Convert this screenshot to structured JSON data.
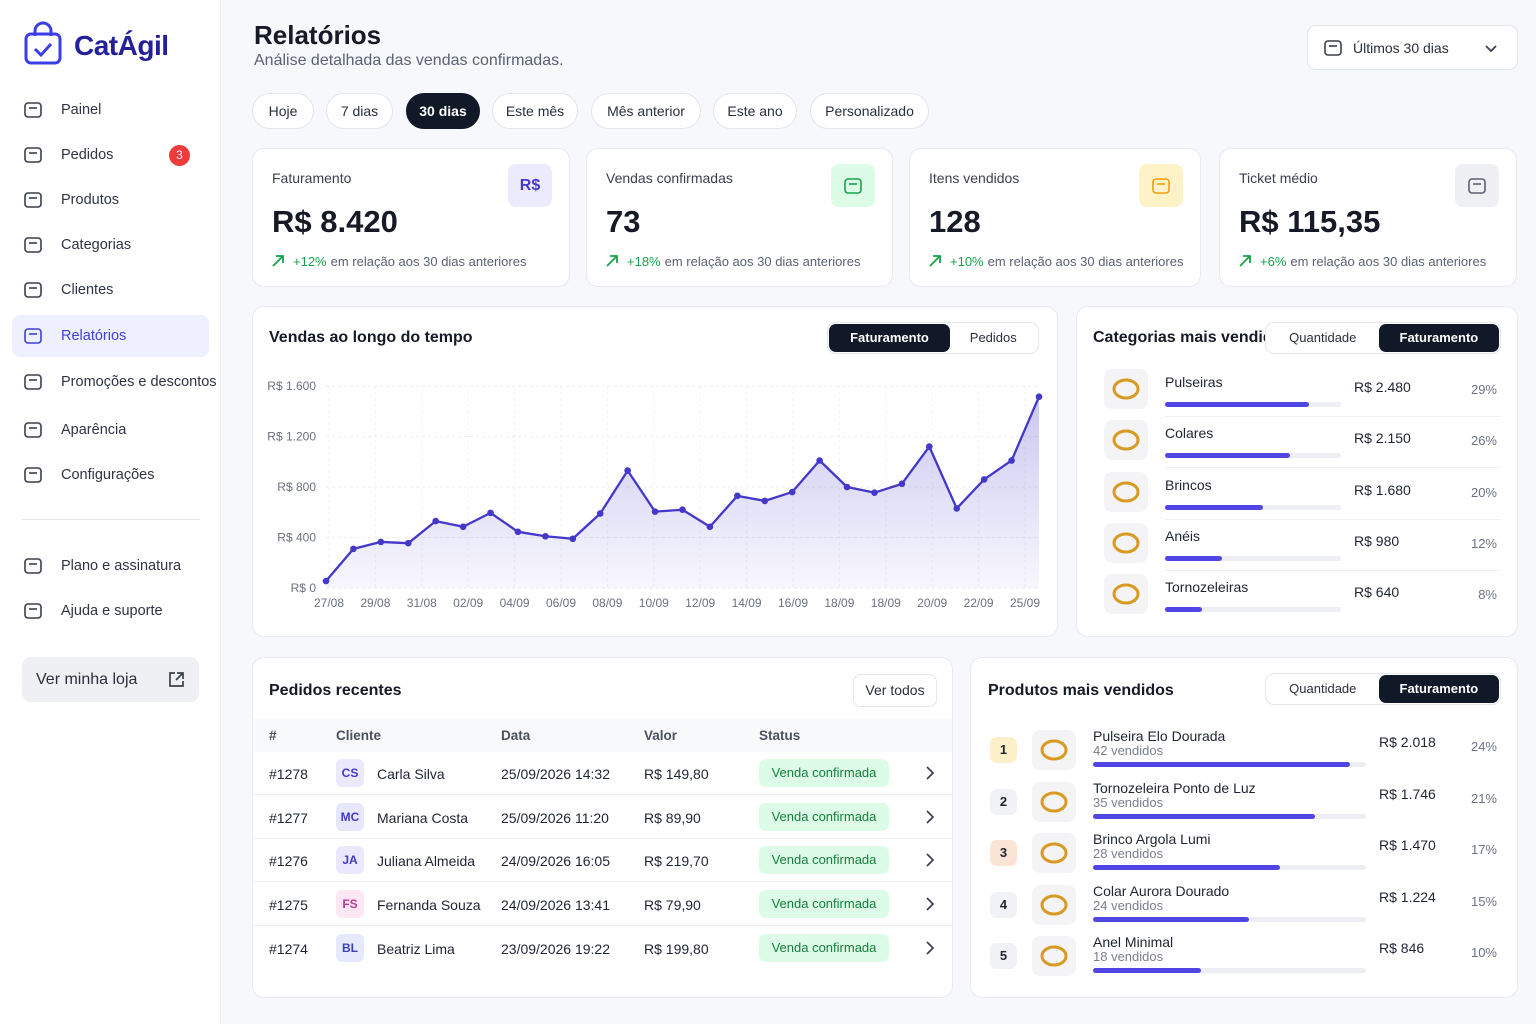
{
  "brand": "CatÁgil",
  "nav": [
    {
      "label": "Painel"
    },
    {
      "label": "Pedidos",
      "badge": "3"
    },
    {
      "label": "Produtos"
    },
    {
      "label": "Categorias"
    },
    {
      "label": "Clientes"
    },
    {
      "label": "Relatórios",
      "active": true
    },
    {
      "label": "Promoções e descontos"
    },
    {
      "label": "Aparência"
    },
    {
      "label": "Configurações"
    }
  ],
  "nav_secondary": [
    {
      "label": "Plano e assinatura"
    },
    {
      "label": "Ajuda e suporte"
    }
  ],
  "store_button": "Ver minha loja",
  "header": {
    "title": "Relatórios",
    "subtitle": "Análise detalhada das vendas confirmadas.",
    "date_select": "Últimos 30 dias"
  },
  "filters": [
    {
      "label": "Hoje"
    },
    {
      "label": "7 dias"
    },
    {
      "label": "30 dias",
      "active": true
    },
    {
      "label": "Este mês"
    },
    {
      "label": "Mês anterior"
    },
    {
      "label": "Este ano"
    },
    {
      "label": "Personalizado"
    }
  ],
  "kpis": [
    {
      "label": "Faturamento",
      "icon": "R$",
      "value": "R$ 8.420",
      "change": "+12%",
      "note": "em relação aos 30 dias anteriores"
    },
    {
      "label": "Vendas confirmadas",
      "value": "73",
      "change": "+18%",
      "note": "em relação aos 30 dias anteriores"
    },
    {
      "label": "Itens vendidos",
      "value": "128",
      "change": "+10%",
      "note": "em relação aos 30 dias anteriores"
    },
    {
      "label": "Ticket médio",
      "value": "R$ 115,35",
      "change": "+6%",
      "note": "em relação aos 30 dias anteriores"
    }
  ],
  "sales_chart": {
    "type": "line",
    "title": "Vendas ao longo do tempo",
    "toggle": [
      {
        "label": "Faturamento",
        "active": true
      },
      {
        "label": "Pedidos"
      }
    ],
    "x_labels": [
      "27/08",
      "29/08",
      "31/08",
      "02/09",
      "04/09",
      "06/09",
      "08/09",
      "10/09",
      "12/09",
      "14/09",
      "16/09",
      "18/09",
      "18/09",
      "20/09",
      "22/09",
      "25/09"
    ],
    "values": [
      55,
      310,
      365,
      355,
      530,
      485,
      595,
      445,
      410,
      390,
      590,
      930,
      605,
      620,
      485,
      730,
      690,
      760,
      1010,
      800,
      755,
      825,
      1120,
      630,
      860,
      1010,
      1515
    ],
    "color": "#4338ca",
    "ylim": [
      0,
      1600
    ],
    "yticks": [
      {
        "value": 0,
        "label": "R$ 0"
      },
      {
        "value": 400,
        "label": "R$ 400"
      },
      {
        "value": 800,
        "label": "R$ 800"
      },
      {
        "value": 1200,
        "label": "R$ 1.200"
      },
      {
        "value": 1600,
        "label": "R$ 1.600"
      }
    ],
    "grid": true
  },
  "categories": {
    "title": "Categorias mais vendidas",
    "toggle": [
      {
        "label": "Quantidade"
      },
      {
        "label": "Faturamento",
        "active": true
      }
    ],
    "items": [
      {
        "name": "Pulseiras",
        "value": 2480,
        "value_label": "R$ 2.480",
        "share": 29,
        "share_label": "29%"
      },
      {
        "name": "Colares",
        "value": 2150,
        "value_label": "R$ 2.150",
        "share": 26,
        "share_label": "26%"
      },
      {
        "name": "Brincos",
        "value": 1680,
        "value_label": "R$ 1.680",
        "share": 20,
        "share_label": "20%"
      },
      {
        "name": "Anéis",
        "value": 980,
        "value_label": "R$ 980",
        "share": 12,
        "share_label": "12%"
      },
      {
        "name": "Tornozeleiras",
        "value": 640,
        "value_label": "R$ 640",
        "share": 8,
        "share_label": "8%"
      }
    ]
  },
  "orders": {
    "title": "Pedidos recentes",
    "button": "Ver todos",
    "columns": [
      "#",
      "Cliente",
      "Data",
      "Valor",
      "Status"
    ],
    "rows": [
      {
        "id": "#1278",
        "initials": "CS",
        "client": "Carla Silva",
        "date": "25/09/2026 14:32",
        "value": "R$ 149,80",
        "status": "Venda confirmada"
      },
      {
        "id": "#1277",
        "initials": "MC",
        "client": "Mariana Costa",
        "date": "25/09/2026 11:20",
        "value": "R$ 89,90",
        "status": "Venda confirmada"
      },
      {
        "id": "#1276",
        "initials": "JA",
        "client": "Juliana Almeida",
        "date": "24/09/2026 16:05",
        "value": "R$ 219,70",
        "status": "Venda confirmada"
      },
      {
        "id": "#1275",
        "initials": "FS",
        "client": "Fernanda Souza",
        "date": "24/09/2026 13:41",
        "value": "R$ 79,90",
        "status": "Venda confirmada"
      },
      {
        "id": "#1274",
        "initials": "BL",
        "client": "Beatriz Lima",
        "date": "23/09/2026 19:22",
        "value": "R$ 199,80",
        "status": "Venda confirmada"
      }
    ]
  },
  "products": {
    "title": "Produtos mais vendidos",
    "toggle": [
      {
        "label": "Quantidade"
      },
      {
        "label": "Faturamento",
        "active": true
      }
    ],
    "items": [
      {
        "rank": "1",
        "name": "Pulseira Elo Dourada",
        "sold": "42 vendidos",
        "value": 2018,
        "value_label": "R$ 2.018",
        "share": 24,
        "share_label": "24%"
      },
      {
        "rank": "2",
        "name": "Tornozeleira Ponto de Luz",
        "sold": "35 vendidos",
        "value": 1746,
        "value_label": "R$ 1.746",
        "share": 21,
        "share_label": "21%"
      },
      {
        "rank": "3",
        "name": "Brinco Argola Lumi",
        "sold": "28 vendidos",
        "value": 1470,
        "value_label": "R$ 1.470",
        "share": 17,
        "share_label": "17%"
      },
      {
        "rank": "4",
        "name": "Colar Aurora Dourado",
        "sold": "24 vendidos",
        "value": 1224,
        "value_label": "R$ 1.224",
        "share": 15,
        "share_label": "15%"
      },
      {
        "rank": "5",
        "name": "Anel Minimal",
        "sold": "18 vendidos",
        "value": 846,
        "value_label": "R$ 846",
        "share": 10,
        "share_label": "10%"
      }
    ]
  }
}
